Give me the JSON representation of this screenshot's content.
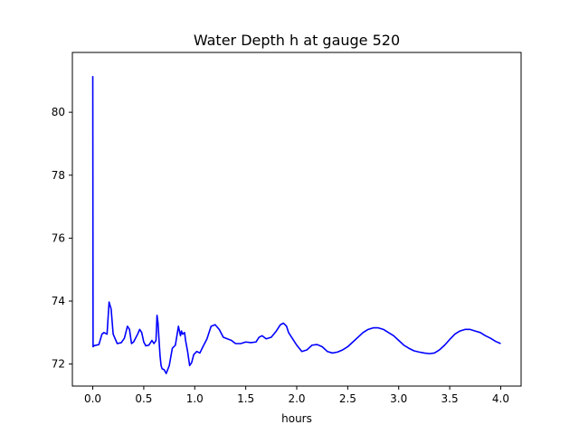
{
  "chart_data": {
    "type": "line",
    "title": "Water Depth h at gauge 520",
    "xlabel": "hours",
    "ylabel": "",
    "xlim": [
      -0.2,
      4.2
    ],
    "ylim": [
      71.3,
      81.9
    ],
    "xticks": [
      0.0,
      0.5,
      1.0,
      1.5,
      2.0,
      2.5,
      3.0,
      3.5,
      4.0
    ],
    "xtick_labels": [
      "0.0",
      "0.5",
      "1.0",
      "1.5",
      "2.0",
      "2.5",
      "3.0",
      "3.5",
      "4.0"
    ],
    "yticks": [
      72,
      74,
      76,
      78,
      80
    ],
    "ytick_labels": [
      "72",
      "74",
      "76",
      "78",
      "80"
    ],
    "grid": false,
    "series": [
      {
        "color": "#0000ff",
        "x": [
          0.0,
          0.003,
          0.006,
          0.01,
          0.06,
          0.09,
          0.11,
          0.14,
          0.16,
          0.18,
          0.2,
          0.24,
          0.28,
          0.31,
          0.34,
          0.36,
          0.38,
          0.4,
          0.44,
          0.46,
          0.48,
          0.5,
          0.52,
          0.55,
          0.58,
          0.6,
          0.62,
          0.63,
          0.64,
          0.65,
          0.66,
          0.67,
          0.68,
          0.7,
          0.72,
          0.75,
          0.78,
          0.81,
          0.84,
          0.86,
          0.87,
          0.88,
          0.9,
          0.91,
          0.93,
          0.95,
          0.97,
          0.99,
          1.02,
          1.05,
          1.08,
          1.12,
          1.16,
          1.2,
          1.24,
          1.28,
          1.32,
          1.36,
          1.4,
          1.45,
          1.5,
          1.55,
          1.6,
          1.63,
          1.66,
          1.7,
          1.75,
          1.8,
          1.84,
          1.87,
          1.9,
          1.92,
          1.95,
          2.0,
          2.05,
          2.1,
          2.15,
          2.2,
          2.25,
          2.3,
          2.35,
          2.4,
          2.45,
          2.5,
          2.55,
          2.6,
          2.65,
          2.7,
          2.75,
          2.8,
          2.85,
          2.9,
          2.95,
          3.0,
          3.05,
          3.1,
          3.15,
          3.2,
          3.25,
          3.3,
          3.35,
          3.4,
          3.45,
          3.5,
          3.55,
          3.6,
          3.65,
          3.7,
          3.75,
          3.8,
          3.85,
          3.9,
          3.95,
          4.0
        ],
        "y": [
          81.15,
          72.55,
          72.56,
          72.58,
          72.62,
          72.95,
          73.0,
          72.95,
          73.97,
          73.75,
          72.95,
          72.65,
          72.68,
          72.82,
          73.2,
          73.1,
          72.65,
          72.7,
          72.95,
          73.1,
          73.0,
          72.7,
          72.58,
          72.6,
          72.75,
          72.65,
          72.75,
          73.55,
          73.3,
          72.75,
          72.25,
          71.95,
          71.85,
          71.82,
          71.7,
          71.95,
          72.5,
          72.6,
          73.2,
          72.9,
          73.05,
          72.95,
          73.0,
          72.75,
          72.4,
          71.95,
          72.05,
          72.3,
          72.4,
          72.35,
          72.55,
          72.8,
          73.2,
          73.25,
          73.1,
          72.85,
          72.8,
          72.75,
          72.65,
          72.65,
          72.7,
          72.68,
          72.7,
          72.85,
          72.9,
          72.8,
          72.85,
          73.05,
          73.25,
          73.3,
          73.2,
          73.0,
          72.85,
          72.6,
          72.4,
          72.45,
          72.6,
          72.62,
          72.55,
          72.4,
          72.35,
          72.38,
          72.45,
          72.55,
          72.7,
          72.85,
          73.0,
          73.1,
          73.15,
          73.15,
          73.1,
          73.0,
          72.9,
          72.75,
          72.6,
          72.5,
          72.42,
          72.38,
          72.35,
          72.33,
          72.35,
          72.45,
          72.6,
          72.78,
          72.95,
          73.05,
          73.1,
          73.1,
          73.05,
          73.0,
          72.9,
          72.82,
          72.72,
          72.65
        ]
      }
    ]
  }
}
